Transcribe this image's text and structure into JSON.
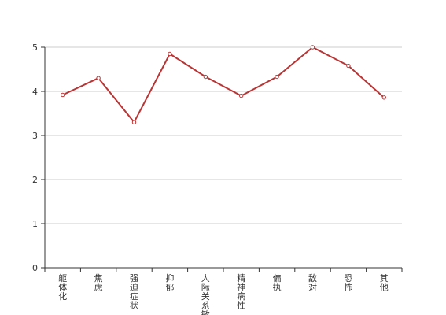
{
  "chart_data": {
    "type": "line",
    "categories": [
      "躯体化",
      "焦虑",
      "强迫症状",
      "抑郁",
      "人际关系敏感",
      "精神病性",
      "偏执",
      "敌对",
      "恐怖",
      "其他"
    ],
    "series": [
      {
        "values": [
          3.92,
          4.3,
          3.3,
          4.85,
          4.33,
          3.9,
          4.33,
          5.0,
          4.58,
          3.86
        ],
        "color": "#b83535"
      }
    ],
    "ylim": [
      0,
      5
    ],
    "yticks": [
      0,
      1,
      2,
      3,
      4,
      5
    ],
    "grid": true,
    "gridColor": "#cccccc",
    "axisColor": "#333333"
  }
}
